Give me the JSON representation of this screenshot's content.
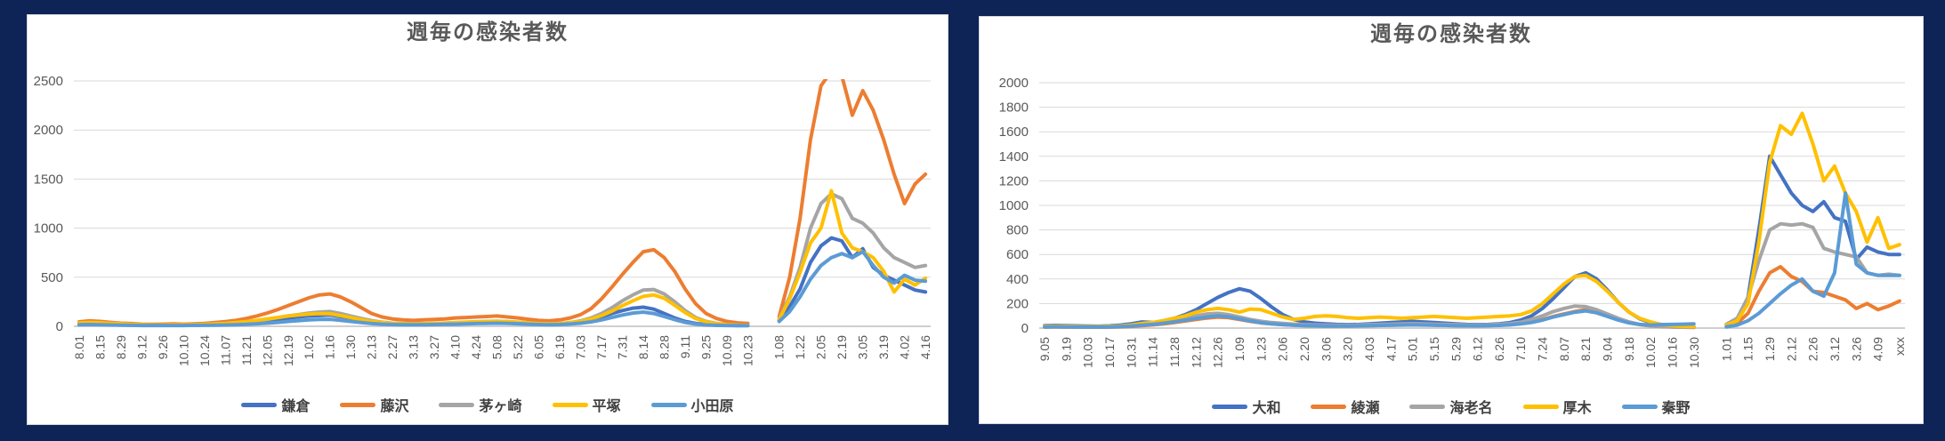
{
  "style": {
    "page_background": "#0e2456",
    "panel_background": "#ffffff",
    "panel_border": "#d2d7e0",
    "grid_color": "#d9d9d9",
    "axis_line_color": "#bfbfbf",
    "tick_label_color": "#595959",
    "title_color": "#595959",
    "legend_text_color": "#404040"
  },
  "chart_data": [
    {
      "type": "line",
      "title": "週毎の感染者数",
      "ylim": [
        0,
        2500
      ],
      "ytick": 500,
      "grid": true,
      "legend_position": "bottom",
      "categories": [
        "8.01",
        "",
        "8.15",
        "",
        "8.29",
        "",
        "9.12",
        "",
        "9.26",
        "",
        "10.10",
        "",
        "10.24",
        "",
        "11.07",
        "",
        "11.21",
        "",
        "12.05",
        "",
        "12.19",
        "",
        "1.02",
        "",
        "1.16",
        "",
        "1.30",
        "",
        "2.13",
        "",
        "2.27",
        "",
        "3.13",
        "",
        "3.27",
        "",
        "4.10",
        "",
        "4.24",
        "",
        "5.08",
        "",
        "5.22",
        "",
        "6.05",
        "",
        "6.19",
        "",
        "7.03",
        "",
        "7.17",
        "",
        "7.31",
        "",
        "8.14",
        "",
        "8.28",
        "",
        "9.11",
        "",
        "9.25",
        "",
        "10.09",
        "",
        "10.23",
        "",
        "",
        "1.08",
        "",
        "1.22",
        "",
        "2.05",
        "",
        "2.19",
        "",
        "3.05",
        "",
        "3.19",
        "",
        "4.02",
        "",
        "4.16"
      ],
      "series": [
        {
          "id": "kamakura",
          "name": "鎌倉",
          "color": "#4472C4",
          "values": [
            25,
            30,
            28,
            22,
            18,
            15,
            12,
            10,
            10,
            12,
            10,
            12,
            14,
            18,
            22,
            28,
            35,
            45,
            55,
            70,
            85,
            95,
            105,
            110,
            115,
            100,
            85,
            60,
            40,
            30,
            25,
            22,
            20,
            22,
            25,
            28,
            32,
            36,
            40,
            44,
            46,
            42,
            36,
            30,
            25,
            22,
            25,
            32,
            45,
            65,
            95,
            130,
            160,
            185,
            195,
            175,
            130,
            85,
            50,
            30,
            18,
            12,
            10,
            8,
            8,
            null,
            null,
            60,
            200,
            380,
            650,
            820,
            900,
            870,
            700,
            790,
            600,
            520,
            470,
            420,
            370,
            350
          ]
        },
        {
          "id": "fujisawa",
          "name": "藤沢",
          "color": "#ED7D31",
          "values": [
            45,
            55,
            50,
            40,
            32,
            28,
            22,
            20,
            22,
            25,
            22,
            25,
            30,
            38,
            48,
            60,
            80,
            105,
            135,
            170,
            210,
            250,
            290,
            320,
            330,
            300,
            250,
            190,
            130,
            95,
            75,
            65,
            60,
            65,
            70,
            75,
            85,
            90,
            95,
            100,
            105,
            95,
            85,
            72,
            60,
            55,
            65,
            85,
            120,
            180,
            280,
            400,
            530,
            650,
            760,
            780,
            700,
            560,
            380,
            230,
            130,
            80,
            50,
            35,
            30,
            null,
            null,
            100,
            500,
            1100,
            1900,
            2450,
            2600,
            2550,
            2150,
            2400,
            2200,
            1900,
            1550,
            1250,
            1450,
            1550
          ]
        },
        {
          "id": "chigasaki",
          "name": "茅ヶ崎",
          "color": "#A5A5A5",
          "values": [
            20,
            25,
            22,
            18,
            15,
            12,
            10,
            10,
            10,
            12,
            12,
            14,
            16,
            20,
            26,
            32,
            42,
            55,
            70,
            88,
            105,
            120,
            135,
            145,
            150,
            130,
            105,
            80,
            58,
            42,
            32,
            28,
            25,
            27,
            30,
            33,
            37,
            42,
            46,
            50,
            52,
            48,
            42,
            35,
            28,
            25,
            28,
            38,
            55,
            85,
            130,
            190,
            260,
            320,
            370,
            375,
            330,
            250,
            160,
            90,
            50,
            30,
            18,
            12,
            10,
            null,
            null,
            80,
            300,
            600,
            1000,
            1250,
            1350,
            1300,
            1100,
            1050,
            950,
            800,
            700,
            650,
            600,
            620
          ]
        },
        {
          "id": "hiratsuka",
          "name": "平塚",
          "color": "#FFC000",
          "values": [
            35,
            40,
            36,
            30,
            25,
            20,
            16,
            14,
            14,
            16,
            15,
            17,
            20,
            25,
            30,
            38,
            48,
            60,
            75,
            90,
            105,
            115,
            125,
            130,
            128,
            110,
            90,
            68,
            50,
            38,
            30,
            26,
            24,
            26,
            29,
            32,
            36,
            40,
            44,
            48,
            50,
            46,
            40,
            34,
            28,
            25,
            28,
            36,
            50,
            75,
            110,
            155,
            210,
            260,
            305,
            320,
            285,
            215,
            140,
            80,
            45,
            26,
            16,
            12,
            10,
            null,
            null,
            70,
            280,
            550,
            850,
            1000,
            1380,
            950,
            800,
            760,
            700,
            560,
            350,
            480,
            420,
            490
          ]
        },
        {
          "id": "odawara",
          "name": "小田原",
          "color": "#5B9BD5",
          "values": [
            15,
            18,
            16,
            14,
            12,
            10,
            8,
            8,
            8,
            8,
            8,
            10,
            10,
            12,
            14,
            16,
            20,
            26,
            32,
            40,
            50,
            58,
            65,
            70,
            72,
            62,
            50,
            38,
            28,
            22,
            18,
            16,
            15,
            16,
            18,
            20,
            22,
            25,
            28,
            30,
            32,
            30,
            26,
            22,
            18,
            16,
            18,
            24,
            32,
            45,
            65,
            90,
            115,
            135,
            145,
            130,
            100,
            68,
            40,
            24,
            14,
            10,
            8,
            6,
            6,
            null,
            null,
            50,
            150,
            300,
            480,
            620,
            700,
            740,
            700,
            760,
            620,
            500,
            440,
            520,
            470,
            460
          ]
        }
      ]
    },
    {
      "type": "line",
      "title": "週毎の感染者数",
      "ylim": [
        0,
        2000
      ],
      "ytick": 200,
      "grid": true,
      "legend_position": "bottom",
      "categories": [
        "9.05",
        "",
        "9.19",
        "",
        "10.03",
        "",
        "10.17",
        "",
        "10.31",
        "",
        "11.14",
        "",
        "11.28",
        "",
        "12.12",
        "",
        "12.26",
        "",
        "1.09",
        "",
        "1.23",
        "",
        "2.06",
        "",
        "2.20",
        "",
        "3.06",
        "",
        "3.20",
        "",
        "4.03",
        "",
        "4.17",
        "",
        "5.01",
        "",
        "5.15",
        "",
        "5.29",
        "",
        "6.12",
        "",
        "6.26",
        "",
        "7.10",
        "",
        "7.24",
        "",
        "8.07",
        "",
        "8.21",
        "",
        "9.04",
        "",
        "9.18",
        "",
        "10.02",
        "",
        "10.16",
        "",
        "10.30",
        "",
        "",
        "1.01",
        "",
        "1.15",
        "",
        "1.29",
        "",
        "2.12",
        "",
        "2.26",
        "",
        "3.12",
        "",
        "3.26",
        "",
        "4.09",
        "",
        "xxx"
      ],
      "series": [
        {
          "id": "yamato",
          "name": "大和",
          "color": "#4472C4",
          "values": [
            20,
            22,
            20,
            18,
            16,
            15,
            18,
            25,
            35,
            50,
            45,
            60,
            80,
            110,
            150,
            200,
            250,
            290,
            320,
            300,
            240,
            170,
            110,
            70,
            50,
            40,
            35,
            30,
            28,
            30,
            35,
            40,
            45,
            50,
            55,
            50,
            45,
            40,
            35,
            30,
            28,
            30,
            35,
            45,
            65,
            100,
            160,
            240,
            330,
            420,
            450,
            400,
            310,
            210,
            130,
            75,
            45,
            28,
            18,
            12,
            10,
            null,
            null,
            30,
            80,
            250,
            800,
            1400,
            1250,
            1100,
            1000,
            950,
            1030,
            900,
            870,
            560,
            660,
            620,
            600,
            600
          ]
        },
        {
          "id": "ayase",
          "name": "綾瀬",
          "color": "#ED7D31",
          "values": [
            8,
            9,
            8,
            8,
            7,
            7,
            8,
            10,
            14,
            20,
            26,
            35,
            45,
            58,
            70,
            82,
            90,
            85,
            70,
            55,
            42,
            34,
            28,
            24,
            20,
            18,
            17,
            16,
            16,
            18,
            20,
            22,
            24,
            26,
            28,
            26,
            24,
            22,
            20,
            19,
            18,
            20,
            23,
            28,
            36,
            50,
            70,
            95,
            115,
            135,
            150,
            130,
            100,
            70,
            45,
            28,
            18,
            12,
            9,
            7,
            6,
            null,
            null,
            15,
            40,
            120,
            300,
            450,
            500,
            420,
            380,
            300,
            290,
            260,
            230,
            160,
            200,
            150,
            180,
            220
          ]
        },
        {
          "id": "ebina",
          "name": "海老名",
          "color": "#A5A5A5",
          "values": [
            12,
            13,
            12,
            11,
            10,
            10,
            12,
            15,
            20,
            30,
            38,
            50,
            65,
            85,
            100,
            115,
            120,
            110,
            90,
            70,
            55,
            45,
            38,
            32,
            28,
            26,
            25,
            24,
            24,
            26,
            28,
            30,
            32,
            34,
            36,
            34,
            32,
            30,
            28,
            26,
            25,
            27,
            30,
            36,
            48,
            70,
            100,
            135,
            160,
            180,
            175,
            150,
            115,
            80,
            50,
            30,
            20,
            14,
            10,
            8,
            8,
            null,
            null,
            30,
            80,
            250,
            550,
            800,
            850,
            840,
            850,
            820,
            650,
            620,
            600,
            580,
            450,
            430,
            440,
            430
          ]
        },
        {
          "id": "atsugi",
          "name": "厚木",
          "color": "#FFC000",
          "values": [
            15,
            16,
            15,
            14,
            13,
            12,
            14,
            18,
            25,
            38,
            45,
            60,
            80,
            100,
            130,
            150,
            160,
            150,
            130,
            155,
            150,
            120,
            90,
            70,
            80,
            95,
            100,
            95,
            85,
            80,
            85,
            90,
            85,
            80,
            85,
            90,
            95,
            90,
            85,
            80,
            85,
            90,
            95,
            100,
            110,
            140,
            200,
            280,
            360,
            420,
            430,
            380,
            300,
            210,
            130,
            80,
            50,
            30,
            20,
            14,
            12,
            null,
            null,
            25,
            60,
            200,
            700,
            1350,
            1650,
            1580,
            1750,
            1500,
            1200,
            1320,
            1100,
            950,
            700,
            900,
            650,
            680
          ]
        },
        {
          "id": "hadano",
          "name": "秦野",
          "color": "#5B9BD5",
          "values": [
            10,
            11,
            10,
            9,
            9,
            8,
            9,
            12,
            16,
            24,
            30,
            40,
            52,
            65,
            78,
            90,
            100,
            92,
            75,
            58,
            44,
            35,
            28,
            24,
            20,
            18,
            17,
            16,
            16,
            18,
            20,
            22,
            24,
            25,
            26,
            25,
            24,
            22,
            20,
            19,
            18,
            20,
            22,
            26,
            34,
            46,
            65,
            90,
            110,
            130,
            140,
            125,
            95,
            65,
            42,
            30,
            25,
            28,
            30,
            32,
            35,
            null,
            null,
            10,
            25,
            60,
            120,
            200,
            280,
            350,
            400,
            300,
            260,
            450,
            1100,
            520,
            450,
            430,
            430,
            430
          ]
        }
      ]
    }
  ]
}
